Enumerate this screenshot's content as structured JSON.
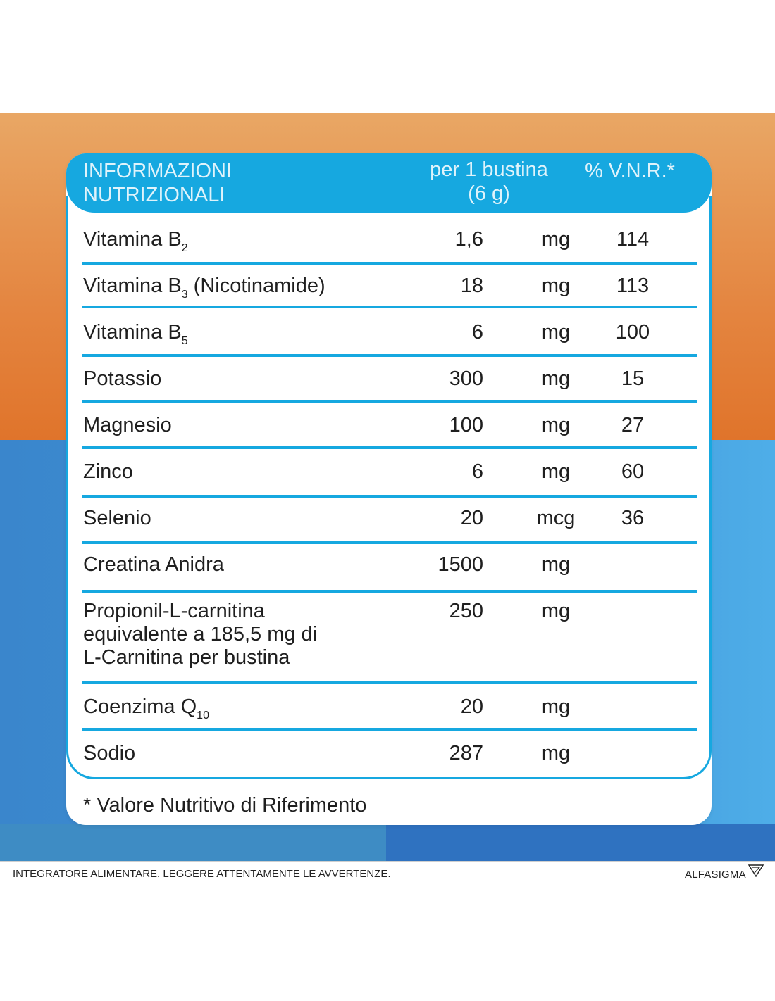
{
  "header": {
    "title_line1": "INFORMAZIONI",
    "title_line2": "NUTRIZIONALI",
    "per_line1": "per 1 bustina",
    "per_line2": "(6 g)",
    "vnr": "% V.N.R.*"
  },
  "rows": [
    {
      "name": "Vitamina B",
      "sub": "2",
      "suffix": "",
      "qty": "1,6",
      "unit": "mg",
      "vnr": "114"
    },
    {
      "name": "Vitamina B",
      "sub": "3",
      "suffix": " (Nicotinamide)",
      "qty": "18",
      "unit": "mg",
      "vnr": "113"
    },
    {
      "name": "Vitamina B",
      "sub": "5",
      "suffix": "",
      "qty": "6",
      "unit": "mg",
      "vnr": "100"
    },
    {
      "name": "Potassio",
      "sub": "",
      "suffix": "",
      "qty": "300",
      "unit": "mg",
      "vnr": "15"
    },
    {
      "name": "Magnesio",
      "sub": "",
      "suffix": "",
      "qty": "100",
      "unit": "mg",
      "vnr": "27"
    },
    {
      "name": "Zinco",
      "sub": "",
      "suffix": "",
      "qty": "6",
      "unit": "mg",
      "vnr": "60"
    },
    {
      "name": "Selenio",
      "sub": "",
      "suffix": "",
      "qty": "20",
      "unit": "mcg",
      "vnr": "36"
    },
    {
      "name": "Creatina Anidra",
      "sub": "",
      "suffix": "",
      "qty": "1500",
      "unit": "mg",
      "vnr": ""
    },
    {
      "name": "Propionil-L-carnitina",
      "line2": "equivalente a 185,5 mg di",
      "line3": "L-Carnitina per bustina",
      "sub": "",
      "suffix": "",
      "qty": "250",
      "unit": "mg",
      "vnr": ""
    },
    {
      "name": "Coenzima Q",
      "sub": "10",
      "suffix": "",
      "qty": "20",
      "unit": "mg",
      "vnr": ""
    },
    {
      "name": "Sodio",
      "sub": "",
      "suffix": "",
      "qty": "287",
      "unit": "mg",
      "vnr": ""
    }
  ],
  "footnote": "* Valore Nutritivo di Riferimento",
  "bottom_bar": {
    "disclaimer": "INTEGRATORE ALIMENTARE. LEGGERE ATTENTAMENTE LE AVVERTENZE.",
    "brand": "ALFASIGMA",
    "brand_icon": "alfasigma-triangle-logo"
  },
  "colors": {
    "accent_blue": "#16a8e0",
    "orange_band": "#e48540",
    "blue_band": "#3f8fd6"
  }
}
